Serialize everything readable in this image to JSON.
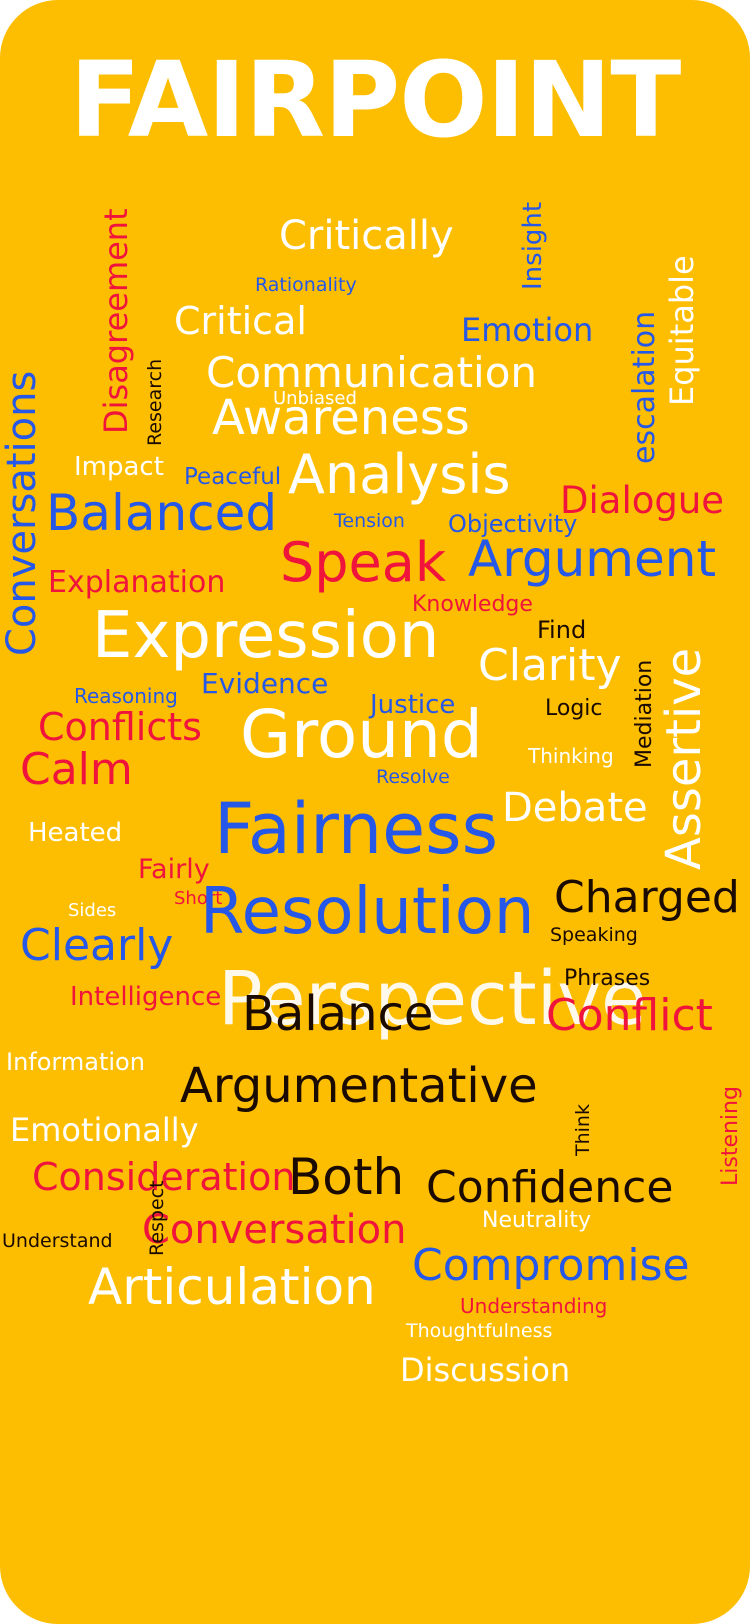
{
  "title": "FAIRPOINT",
  "colors": {
    "background": "#FDBE02",
    "white": "#ffffff",
    "blue": "#2557E8",
    "red": "#F0143C",
    "black": "#1a0a00"
  },
  "words": {
    "critically": "Critically",
    "insight": "Insight",
    "disagreement": "Disagreement",
    "rationality": "Rationality",
    "equitable": "Equitable",
    "critical": "Critical",
    "emotion": "Emotion",
    "research": "Research",
    "escalation": "escalation",
    "conversations": "Conversations",
    "communication": "Communication",
    "unbiased": "Unbiased",
    "awareness": "Awareness",
    "impact": "Impact",
    "peaceful": "Peaceful",
    "analysis": "Analysis",
    "dialogue": "Dialogue",
    "balanced": "Balanced",
    "tension": "Tension",
    "objectivity": "Objectivity",
    "speak": "Speak",
    "argument": "Argument",
    "explanation": "Explanation",
    "knowledge": "Knowledge",
    "find": "Find",
    "expression": "Expression",
    "clarity": "Clarity",
    "mediation": "Mediation",
    "assertive": "Assertive",
    "reasoning": "Reasoning",
    "evidence": "Evidence",
    "justice": "Justice",
    "logic": "Logic",
    "conflicts": "Conflicts",
    "ground": "Ground",
    "thinking": "Thinking",
    "calm": "Calm",
    "resolve": "Resolve",
    "debate": "Debate",
    "heated": "Heated",
    "fairness": "Fairness",
    "fairly": "Fairly",
    "short": "Short",
    "charged": "Charged",
    "sides": "Sides",
    "resolution": "Resolution",
    "speaking": "Speaking",
    "clearly": "Clearly",
    "phrases": "Phrases",
    "intelligence": "Intelligence",
    "perspective": "Perspective",
    "balance": "Balance",
    "conflict": "Conflict",
    "information": "Information",
    "argumentative": "Argumentative",
    "listening": "Listening",
    "emotionally": "Emotionally",
    "think": "Think",
    "consideration": "Consideration",
    "both": "Both",
    "confidence": "Confidence",
    "respect": "Respect",
    "neutrality": "Neutrality",
    "understand": "Understand",
    "conversation": "Conversation",
    "compromise": "Compromise",
    "articulation": "Articulation",
    "understanding": "Understanding",
    "thoughtfulness": "Thoughtfulness",
    "discussion": "Discussion"
  }
}
